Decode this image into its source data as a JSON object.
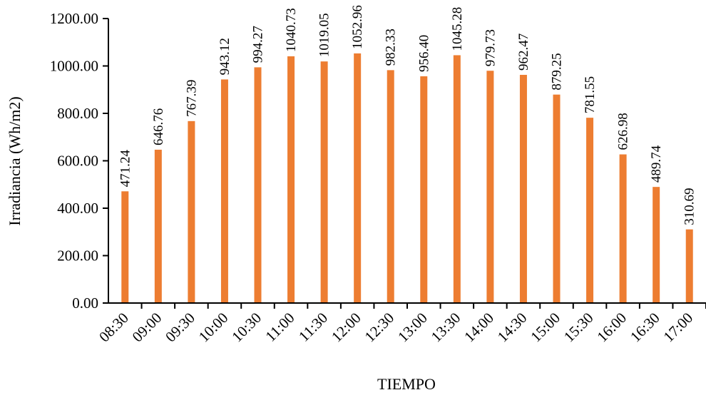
{
  "chart_data": {
    "type": "bar",
    "title": "",
    "xlabel": "TIEMPO",
    "ylabel": "Irradiancia (Wh/m2)",
    "ylim": [
      0,
      1200
    ],
    "yticks": [
      "0.00",
      "200.00",
      "400.00",
      "600.00",
      "800.00",
      "1000.00",
      "1200.00"
    ],
    "categories": [
      "08:30",
      "09:00",
      "09:30",
      "10:00",
      "10:30",
      "11:00",
      "11:30",
      "12:00",
      "12:30",
      "13:00",
      "13:30",
      "14:00",
      "14:30",
      "15:00",
      "15:30",
      "16:00",
      "16:30",
      "17:00"
    ],
    "values": [
      471.24,
      646.76,
      767.39,
      943.12,
      994.27,
      1040.73,
      1019.05,
      1052.96,
      982.33,
      956.4,
      1045.28,
      979.73,
      962.47,
      879.25,
      781.55,
      626.98,
      489.74,
      310.69
    ],
    "data_labels": [
      "471.24",
      "646.76",
      "767.39",
      "943.12",
      "994.27",
      "1040.73",
      "1019.05",
      "1052.96",
      "982.33",
      "956.40",
      "1045.28",
      "979.73",
      "962.47",
      "879.25",
      "781.55",
      "626.98",
      "489.74",
      "310.69"
    ],
    "bar_color": "#ED7D31",
    "grid": false,
    "legend": "none"
  }
}
